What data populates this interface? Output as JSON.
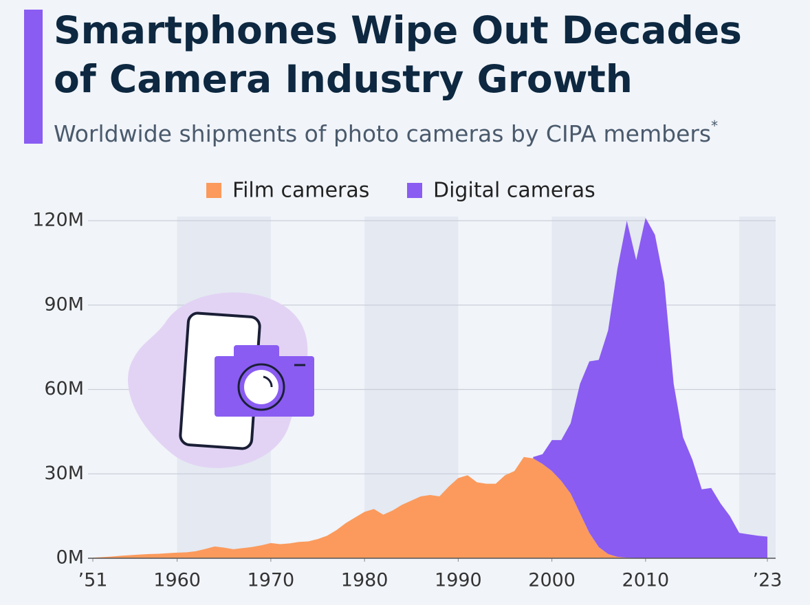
{
  "chart_data": {
    "type": "stacked_area",
    "title": [
      "Smartphones Wipe Out Decades",
      "of Camera Industry Growth"
    ],
    "subtitle": "Worldwide shipments of photo cameras by CIPA members",
    "subtitle_mark": "*",
    "x": [
      1951,
      1952,
      1953,
      1954,
      1955,
      1956,
      1957,
      1958,
      1959,
      1960,
      1961,
      1962,
      1963,
      1964,
      1965,
      1966,
      1967,
      1968,
      1969,
      1970,
      1971,
      1972,
      1973,
      1974,
      1975,
      1976,
      1977,
      1978,
      1979,
      1980,
      1981,
      1982,
      1983,
      1984,
      1985,
      1986,
      1987,
      1988,
      1989,
      1990,
      1991,
      1992,
      1993,
      1994,
      1995,
      1996,
      1997,
      1998,
      1999,
      2000,
      2001,
      2002,
      2003,
      2004,
      2005,
      2006,
      2007,
      2008,
      2009,
      2010,
      2011,
      2012,
      2013,
      2014,
      2015,
      2016,
      2017,
      2018,
      2019,
      2020,
      2021,
      2022,
      2023
    ],
    "series": [
      {
        "name": "Film cameras",
        "color": "#fb9a5c",
        "values": [
          0.2,
          0.4,
          0.6,
          0.9,
          1.1,
          1.3,
          1.5,
          1.6,
          1.8,
          2.0,
          2.1,
          2.5,
          3.3,
          4.2,
          3.8,
          3.2,
          3.6,
          4.0,
          4.6,
          5.4,
          5.0,
          5.3,
          5.8,
          6.0,
          6.8,
          8.0,
          10,
          12.5,
          14.5,
          16.5,
          17.5,
          15.5,
          17,
          19,
          20.5,
          22,
          22.5,
          22,
          25.5,
          28.5,
          29.5,
          27,
          26.5,
          26.5,
          29.5,
          31,
          36,
          35.5,
          33.5,
          31,
          27.5,
          23,
          16,
          9,
          4,
          1.5,
          0.5,
          0.2,
          0.1,
          0.1,
          0,
          0,
          0,
          0,
          0,
          0,
          0,
          0,
          0,
          0,
          0,
          0,
          0
        ]
      },
      {
        "name": "Digital cameras",
        "color": "#8a5cf2",
        "values": [
          null,
          null,
          null,
          null,
          null,
          null,
          null,
          null,
          null,
          null,
          null,
          null,
          null,
          null,
          null,
          null,
          null,
          null,
          null,
          null,
          null,
          null,
          null,
          null,
          null,
          null,
          null,
          null,
          null,
          null,
          null,
          null,
          null,
          null,
          null,
          null,
          null,
          null,
          null,
          null,
          null,
          null,
          null,
          null,
          null,
          null,
          null,
          0.5,
          3.5,
          11,
          14.5,
          25,
          46,
          61,
          66.5,
          79.5,
          102.5,
          119.8,
          105.9,
          120.9,
          115,
          98,
          62,
          43,
          35,
          24.5,
          25,
          19.5,
          15,
          9,
          8.5,
          8,
          7.7
        ]
      }
    ],
    "xlim": [
      1951,
      2023
    ],
    "xticks": [
      {
        "value": 1951,
        "label": "’51"
      },
      1960,
      1970,
      1980,
      1990,
      2000,
      2010,
      {
        "value": 2023,
        "label": "’23"
      }
    ],
    "ylim": [
      0,
      120
    ],
    "yticks": [
      {
        "value": 0,
        "label": "0M"
      },
      {
        "value": 30,
        "label": "30M"
      },
      {
        "value": 60,
        "label": "60M"
      },
      {
        "value": 90,
        "label": "90M"
      },
      {
        "value": 120,
        "label": "120M"
      }
    ],
    "grid": true
  }
}
